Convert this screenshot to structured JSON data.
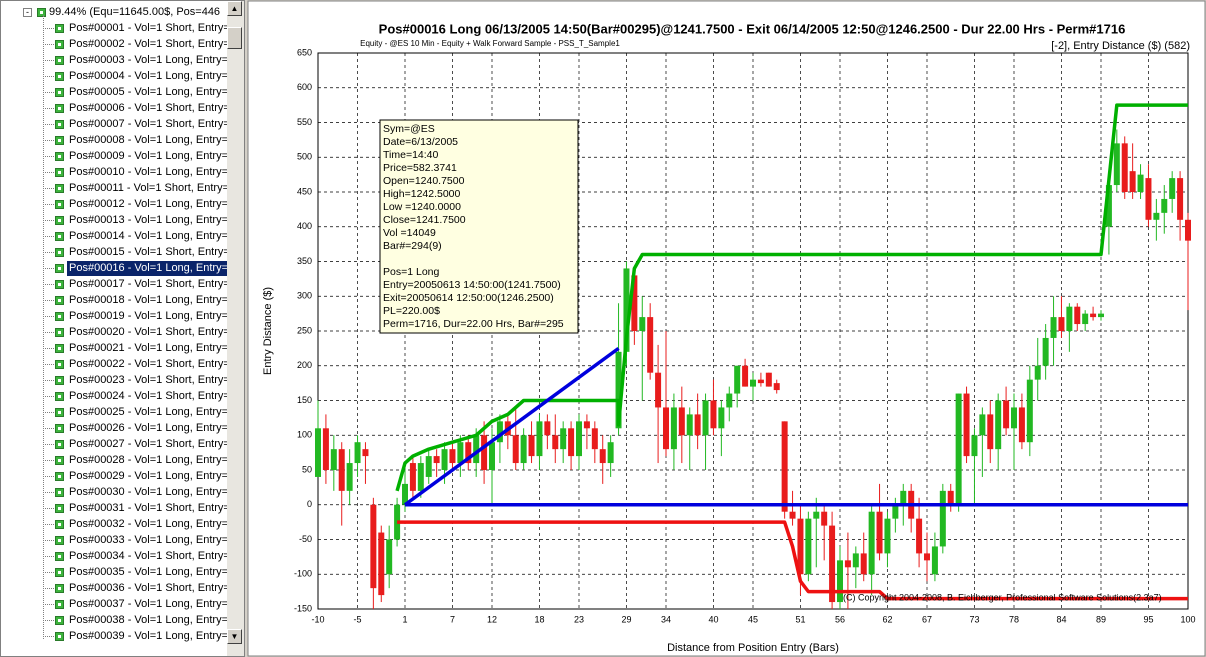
{
  "tree": {
    "root": "99.44% (Equ=11645.00$, Pos=446",
    "selected": 15,
    "items": [
      "Pos#00001 - Vol=1 Short, Entry=",
      "Pos#00002 - Vol=1 Short, Entry=",
      "Pos#00003 - Vol=1 Long, Entry=",
      "Pos#00004 - Vol=1 Long, Entry=",
      "Pos#00005 - Vol=1 Long, Entry=",
      "Pos#00006 - Vol=1 Short, Entry=",
      "Pos#00007 - Vol=1 Short, Entry=",
      "Pos#00008 - Vol=1 Long, Entry=",
      "Pos#00009 - Vol=1 Long, Entry=",
      "Pos#00010 - Vol=1 Long, Entry=",
      "Pos#00011 - Vol=1 Short, Entry=",
      "Pos#00012 - Vol=1 Long, Entry=",
      "Pos#00013 - Vol=1 Long, Entry=",
      "Pos#00014 - Vol=1 Long, Entry=",
      "Pos#00015 - Vol=1 Short, Entry=",
      "Pos#00016 - Vol=1 Long, Entry=",
      "Pos#00017 - Vol=1 Short, Entry=",
      "Pos#00018 - Vol=1 Long, Entry=",
      "Pos#00019 - Vol=1 Long, Entry=",
      "Pos#00020 - Vol=1 Short, Entry=",
      "Pos#00021 - Vol=1 Long, Entry=",
      "Pos#00022 - Vol=1 Short, Entry=",
      "Pos#00023 - Vol=1 Short, Entry=",
      "Pos#00024 - Vol=1 Short, Entry=",
      "Pos#00025 - Vol=1 Long, Entry=",
      "Pos#00026 - Vol=1 Long, Entry=",
      "Pos#00027 - Vol=1 Short, Entry=",
      "Pos#00028 - Vol=1 Long, Entry=",
      "Pos#00029 - Vol=1 Long, Entry=",
      "Pos#00030 - Vol=1 Long, Entry=",
      "Pos#00031 - Vol=1 Short, Entry=",
      "Pos#00032 - Vol=1 Long, Entry=",
      "Pos#00033 - Vol=1 Long, Entry=",
      "Pos#00034 - Vol=1 Short, Entry=",
      "Pos#00035 - Vol=1 Long, Entry=",
      "Pos#00036 - Vol=1 Short, Entry=",
      "Pos#00037 - Vol=1 Long, Entry=",
      "Pos#00038 - Vol=1 Long, Entry=",
      "Pos#00039 - Vol=1 Long, Entry="
    ]
  },
  "chart_data": {
    "type": "candlestick",
    "title": "Pos#00016 Long  06/13/2005 14:50(Bar#00295)@1241.7500 - Exit 06/14/2005 12:50@1246.2500 - Dur 22.00 Hrs - Perm#1716",
    "subtitle": "Equity - @ES 10 Min - Equity + Walk Forward Sample - PSS_T_Sample1",
    "legend_label": "[-2],   Entry Distance ($) (582)",
    "y_label": "Entry Distance ($)",
    "x_label": "Distance from Position Entry (Bars)",
    "copyright": "(C) Copyright  2004-2008, B. Eichberger, Professional Software Solutions(2.3a7)",
    "xlim": [
      -10,
      100
    ],
    "ylim": [
      -150,
      650
    ],
    "xticks": [
      -10,
      -5,
      1,
      7,
      12,
      18,
      23,
      29,
      34,
      40,
      45,
      51,
      56,
      62,
      67,
      73,
      78,
      84,
      89,
      95,
      100
    ],
    "yticks": [
      -150,
      -100,
      -50,
      0,
      50,
      100,
      150,
      200,
      250,
      300,
      350,
      400,
      450,
      500,
      550,
      600,
      650
    ],
    "grid": true,
    "up_color": "#22b822",
    "down_color": "#e81c1c",
    "candles": {
      "x": [
        -10,
        -9,
        -8,
        -7,
        -6,
        -5,
        -4,
        -3,
        -2,
        -1,
        0,
        1,
        2,
        3,
        4,
        5,
        6,
        7,
        8,
        9,
        10,
        11,
        12,
        13,
        14,
        15,
        16,
        17,
        18,
        19,
        20,
        21,
        22,
        23,
        24,
        25,
        26,
        27,
        28,
        29,
        30,
        31,
        32,
        33,
        34,
        35,
        36,
        37,
        38,
        39,
        40,
        41,
        42,
        43,
        44,
        45,
        46,
        47,
        48,
        49,
        50,
        51,
        52,
        53,
        54,
        55,
        56,
        57,
        58,
        59,
        60,
        61,
        62,
        63,
        64,
        65,
        66,
        67,
        68,
        69,
        70,
        71,
        72,
        73,
        74,
        75,
        76,
        77,
        78,
        79,
        80,
        81,
        82,
        83,
        84,
        85,
        86,
        87,
        88,
        89,
        90,
        91,
        92,
        93,
        94,
        95,
        96,
        97,
        98,
        99,
        100
      ],
      "open": [
        40,
        110,
        50,
        80,
        20,
        60,
        80,
        0,
        -40,
        -100,
        -50,
        0,
        60,
        20,
        40,
        70,
        50,
        80,
        60,
        90,
        60,
        100,
        50,
        90,
        120,
        100,
        60,
        100,
        70,
        120,
        100,
        80,
        110,
        70,
        120,
        110,
        80,
        60,
        110,
        220,
        330,
        250,
        270,
        190,
        140,
        80,
        140,
        100,
        130,
        100,
        150,
        110,
        140,
        160,
        200,
        170,
        180,
        190,
        175,
        120,
        -10,
        -20,
        -100,
        -20,
        -10,
        -30,
        -140,
        -80,
        -90,
        -70,
        -100,
        -10,
        -70,
        -20,
        0,
        20,
        -20,
        -70,
        -100,
        -60,
        20,
        0,
        160,
        70,
        100,
        130,
        80,
        150,
        110,
        140,
        90,
        180,
        200,
        240,
        270,
        250,
        285,
        260,
        275,
        270,
        400,
        460,
        520,
        480,
        450,
        470,
        410,
        420,
        440,
        470,
        410
      ],
      "high": [
        150,
        130,
        100,
        90,
        80,
        100,
        90,
        10,
        -30,
        -30,
        10,
        50,
        70,
        70,
        80,
        80,
        90,
        90,
        100,
        100,
        110,
        120,
        110,
        130,
        130,
        140,
        110,
        120,
        130,
        130,
        130,
        120,
        120,
        130,
        130,
        120,
        100,
        100,
        290,
        350,
        340,
        300,
        290,
        230,
        250,
        160,
        170,
        140,
        160,
        160,
        180,
        150,
        170,
        200,
        210,
        190,
        190,
        190,
        180,
        120,
        20,
        0,
        -10,
        10,
        0,
        -10,
        -60,
        -40,
        -60,
        -40,
        0,
        30,
        -10,
        10,
        30,
        30,
        10,
        -40,
        -40,
        30,
        30,
        160,
        170,
        110,
        140,
        150,
        160,
        170,
        160,
        160,
        200,
        240,
        260,
        300,
        300,
        290,
        290,
        280,
        285,
        280,
        470,
        540,
        530,
        520,
        490,
        490,
        440,
        460,
        480,
        480,
        420
      ],
      "low": [
        40,
        30,
        20,
        -30,
        0,
        40,
        30,
        -150,
        -140,
        -120,
        -60,
        -10,
        10,
        10,
        30,
        40,
        30,
        50,
        40,
        50,
        40,
        30,
        0,
        60,
        80,
        50,
        50,
        60,
        50,
        80,
        60,
        60,
        50,
        50,
        80,
        60,
        30,
        40,
        100,
        200,
        230,
        150,
        180,
        60,
        70,
        50,
        60,
        50,
        80,
        50,
        100,
        70,
        120,
        140,
        170,
        150,
        170,
        170,
        160,
        -20,
        -30,
        -130,
        -110,
        -90,
        -80,
        -150,
        -150,
        -150,
        -120,
        -110,
        -130,
        -80,
        -90,
        -40,
        -30,
        -40,
        -90,
        -110,
        -110,
        -70,
        -10,
        -10,
        60,
        0,
        40,
        60,
        50,
        100,
        50,
        80,
        70,
        150,
        180,
        200,
        240,
        220,
        250,
        250,
        265,
        265,
        360,
        450,
        440,
        440,
        440,
        400,
        380,
        390,
        420,
        380,
        280
      ],
      "close": [
        110,
        50,
        80,
        20,
        60,
        90,
        70,
        -120,
        -130,
        -50,
        0,
        30,
        20,
        60,
        70,
        60,
        80,
        60,
        90,
        60,
        100,
        50,
        90,
        120,
        100,
        60,
        100,
        70,
        120,
        100,
        80,
        110,
        70,
        120,
        110,
        80,
        60,
        90,
        220,
        340,
        250,
        270,
        190,
        140,
        80,
        140,
        100,
        130,
        100,
        150,
        110,
        140,
        160,
        200,
        170,
        180,
        175,
        170,
        165,
        -10,
        -20,
        -100,
        -20,
        -10,
        -30,
        -140,
        -80,
        -90,
        -70,
        -100,
        -10,
        -70,
        -20,
        0,
        20,
        -20,
        -70,
        -80,
        -60,
        20,
        0,
        160,
        70,
        100,
        130,
        80,
        150,
        110,
        140,
        90,
        180,
        200,
        240,
        270,
        250,
        285,
        260,
        275,
        270,
        275,
        460,
        520,
        450,
        450,
        475,
        410,
        420,
        440,
        470,
        410,
        380
      ]
    },
    "lines": [
      {
        "color": "#00b000",
        "x": [
          0,
          1,
          2,
          4,
          7,
          10,
          12,
          14,
          16,
          26,
          28,
          28,
          29,
          30,
          31,
          88,
          89,
          91,
          100
        ],
        "values": [
          20,
          60,
          70,
          80,
          90,
          100,
          120,
          130,
          150,
          150,
          150,
          115,
          240,
          340,
          360,
          360,
          360,
          575,
          575
        ]
      },
      {
        "color": "#ee1111",
        "x": [
          0,
          49,
          50,
          51,
          52,
          61,
          62,
          100
        ],
        "values": [
          -25,
          -25,
          -60,
          -110,
          -125,
          -125,
          -135,
          -135
        ]
      },
      {
        "color": "#0000dd",
        "x": [
          1,
          100
        ],
        "values": [
          0,
          0
        ]
      },
      {
        "color": "#0000dd",
        "x": [
          1,
          28
        ],
        "values": [
          0,
          225
        ]
      }
    ],
    "tooltip": [
      "Sym=@ES",
      "Date=6/13/2005",
      "Time=14:40",
      "Price=582.3741",
      "Open=1240.7500",
      "High=1242.5000",
      "Low =1240.0000",
      "Close=1241.7500",
      "Vol =14049",
      "Bar#=294(9)",
      "",
      "Pos=1 Long",
      "Entry=20050613 14:50:00(1241.7500)",
      "Exit=20050614 12:50:00(1246.2500)",
      "PL=220.00$",
      "Perm=1716, Dur=22.00 Hrs, Bar#=295"
    ]
  }
}
